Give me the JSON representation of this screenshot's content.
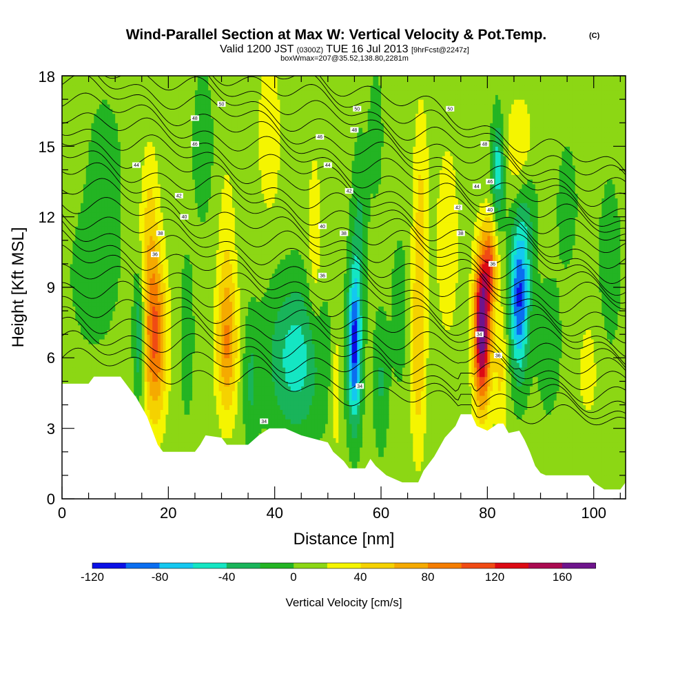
{
  "chart_data": {
    "type": "heatmap",
    "title": "Wind-Parallel Section at Max W: Vertical Velocity & Pot.Temp.",
    "title_mark": "(C)",
    "subtitle_main": "Valid 1200 JST",
    "subtitle_utc": "(0300Z)",
    "subtitle_date": "TUE 16 Jul 2013",
    "subtitle_fcst": "[9hrFcst@2247z]",
    "subtitle_box": "boxWmax=207@35.52,138.80,2281m",
    "xlabel": "Distance [nm]",
    "ylabel": "Height [Kft MSL]",
    "xlim": [
      0,
      106
    ],
    "ylim": [
      0,
      18
    ],
    "x_ticks": [
      "0",
      "20",
      "40",
      "60",
      "80",
      "100"
    ],
    "y_ticks": [
      "0",
      "3",
      "6",
      "9",
      "12",
      "15",
      "18"
    ],
    "grid": false,
    "colorbar": {
      "label": "Vertical Velocity [cm/s]",
      "ticks": [
        "-120",
        "-80",
        "-40",
        "0",
        "40",
        "80",
        "120",
        "160"
      ],
      "levels": [
        -120,
        -100,
        -80,
        -60,
        -40,
        -20,
        0,
        20,
        40,
        60,
        80,
        100,
        120,
        140,
        160,
        180
      ],
      "colors": [
        "#0a10e6",
        "#0a6ef0",
        "#14c8f0",
        "#14e6c3",
        "#19b45a",
        "#23b423",
        "#8cd714",
        "#f5f500",
        "#f5d200",
        "#f5aa00",
        "#f57d00",
        "#f04b14",
        "#dc0a14",
        "#aa0a50",
        "#6e148c"
      ]
    },
    "terrain_kft": [
      [
        0,
        4.9
      ],
      [
        5,
        4.9
      ],
      [
        6,
        5.2
      ],
      [
        11,
        5.2
      ],
      [
        12,
        4.9
      ],
      [
        13,
        4.6
      ],
      [
        14,
        4.3
      ],
      [
        16,
        3.5
      ],
      [
        17,
        2.9
      ],
      [
        18,
        2.3
      ],
      [
        19,
        2.0
      ],
      [
        25,
        2.0
      ],
      [
        26,
        2.3
      ],
      [
        27,
        2.7
      ],
      [
        30,
        2.6
      ],
      [
        31,
        2.3
      ],
      [
        35,
        2.3
      ],
      [
        37,
        2.7
      ],
      [
        39,
        3.0
      ],
      [
        42,
        3.0
      ],
      [
        43,
        2.9
      ],
      [
        45,
        2.7
      ],
      [
        50,
        2.4
      ],
      [
        51,
        2.0
      ],
      [
        53,
        1.6
      ],
      [
        54,
        1.3
      ],
      [
        57,
        1.3
      ],
      [
        58,
        1.7
      ],
      [
        59,
        1.4
      ],
      [
        61,
        1.0
      ],
      [
        63,
        0.8
      ],
      [
        64,
        0.7
      ],
      [
        67,
        0.7
      ],
      [
        68,
        1.2
      ],
      [
        70,
        1.8
      ],
      [
        72,
        2.6
      ],
      [
        74,
        3.1
      ],
      [
        75,
        3.6
      ],
      [
        77,
        3.6
      ],
      [
        78,
        3.1
      ],
      [
        80,
        2.9
      ],
      [
        82,
        3.2
      ],
      [
        83,
        3.2
      ],
      [
        84,
        2.8
      ],
      [
        86,
        2.9
      ],
      [
        87,
        2.5
      ],
      [
        88,
        2.0
      ],
      [
        89,
        1.4
      ],
      [
        90,
        1.1
      ],
      [
        91,
        1.0
      ],
      [
        99,
        1.0
      ],
      [
        100,
        0.7
      ],
      [
        102,
        0.4
      ],
      [
        105,
        0.4
      ],
      [
        106,
        0.7
      ]
    ],
    "theta_labels": [
      "50",
      "48",
      "46",
      "44",
      "42",
      "40",
      "38",
      "36",
      "34"
    ]
  }
}
